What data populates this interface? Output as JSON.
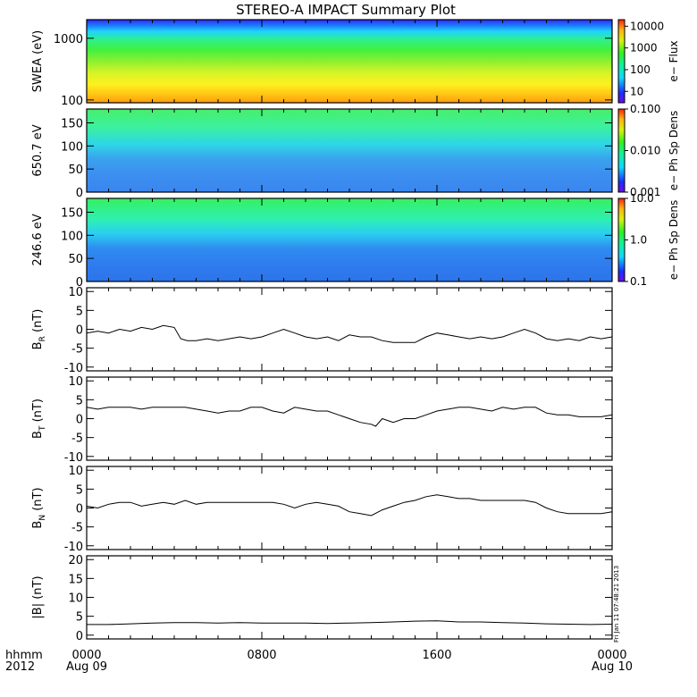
{
  "title": "STEREO-A IMPACT Summary Plot",
  "stamp": "Fri Jan 11 07:48:21 2013",
  "x_axis": {
    "corner_top": "hhmm",
    "corner_bottom": "2012",
    "ticks": [
      {
        "h": 0,
        "top": "0000",
        "bottom": "Aug 09"
      },
      {
        "h": 8,
        "top": "0800",
        "bottom": ""
      },
      {
        "h": 16,
        "top": "1600",
        "bottom": ""
      },
      {
        "h": 24,
        "top": "0000",
        "bottom": "Aug 10"
      }
    ],
    "range_hours": [
      0,
      24
    ]
  },
  "chart_data": [
    {
      "type": "heatmap",
      "ylabel": "SWEA (eV)",
      "yscale": "log",
      "ylim": [
        90,
        2000
      ],
      "yticks": [
        "100",
        "1000"
      ],
      "colorbar": {
        "label": "e− Flux",
        "ticks": [
          "10",
          "100",
          "1000",
          "10000"
        ],
        "scale": "log",
        "range": [
          3,
          20000
        ]
      }
    },
    {
      "type": "heatmap",
      "ylabel": "650.7 eV",
      "ylim": [
        0,
        180
      ],
      "yticks": [
        "0",
        "50",
        "100",
        "150"
      ],
      "colorbar": {
        "label": "e− Ph Sp Dens",
        "ticks": [
          "0.001",
          "0.010",
          "0.100"
        ],
        "scale": "log",
        "range": [
          0.001,
          0.1
        ]
      }
    },
    {
      "type": "heatmap",
      "ylabel": "246.6 eV",
      "ylim": [
        0,
        180
      ],
      "yticks": [
        "0",
        "50",
        "100",
        "150"
      ],
      "colorbar": {
        "label": "e− Ph Sp Dens",
        "ticks": [
          "0.1",
          "1.0",
          "10.0"
        ],
        "scale": "log",
        "range": [
          0.1,
          10
        ]
      }
    },
    {
      "type": "line",
      "ylabel": "B",
      "ysub": "R",
      "yunit": " (nT)",
      "ylim": [
        -11,
        11
      ],
      "yticks": [
        -10,
        -5,
        0,
        5,
        10
      ],
      "x_hours": [
        0,
        0.5,
        1,
        1.5,
        2,
        2.5,
        3,
        3.5,
        4,
        4.3,
        4.6,
        5,
        5.5,
        6,
        6.5,
        7,
        7.5,
        8,
        8.5,
        9,
        9.5,
        10,
        10.5,
        11,
        11.5,
        12,
        12.5,
        13,
        13.5,
        14,
        14.5,
        15,
        15.5,
        16,
        16.5,
        17,
        17.5,
        18,
        18.5,
        19,
        19.5,
        20,
        20.5,
        21,
        21.5,
        22,
        22.5,
        23,
        23.5,
        24
      ],
      "values": [
        -1,
        -0.5,
        -1,
        0,
        -0.5,
        0.5,
        0,
        1,
        0.5,
        -2.5,
        -3,
        -3,
        -2.5,
        -3,
        -2.5,
        -2,
        -2.5,
        -2,
        -1,
        0,
        -1,
        -2,
        -2.5,
        -2,
        -3,
        -1.5,
        -2,
        -2,
        -3,
        -3.5,
        -3.5,
        -3.5,
        -2,
        -1,
        -1.5,
        -2,
        -2.5,
        -2,
        -2.5,
        -2,
        -1,
        0,
        -1,
        -2.5,
        -3,
        -2.5,
        -3,
        -2,
        -2.5,
        -2
      ]
    },
    {
      "type": "line",
      "ylabel": "B",
      "ysub": "T",
      "yunit": " (nT)",
      "ylim": [
        -11,
        11
      ],
      "yticks": [
        -10,
        -5,
        0,
        5,
        10
      ],
      "x_hours": [
        0,
        0.5,
        1,
        1.5,
        2,
        2.5,
        3,
        3.5,
        4,
        4.5,
        5,
        5.5,
        6,
        6.5,
        7,
        7.5,
        8,
        8.5,
        9,
        9.5,
        10,
        10.5,
        11,
        11.5,
        12,
        12.5,
        13,
        13.2,
        13.5,
        14,
        14.5,
        15,
        15.5,
        16,
        16.5,
        17,
        17.5,
        18,
        18.5,
        19,
        19.5,
        20,
        20.5,
        21,
        21.5,
        22,
        22.5,
        23,
        23.5,
        24
      ],
      "values": [
        3,
        2.5,
        3,
        3,
        3,
        2.5,
        3,
        3,
        3,
        3,
        2.5,
        2,
        1.5,
        2,
        2,
        3,
        3,
        2,
        1.5,
        3,
        2.5,
        2,
        2,
        1,
        0,
        -1,
        -1.5,
        -2,
        0,
        -1,
        0,
        0,
        1,
        2,
        2.5,
        3,
        3,
        2.5,
        2,
        3,
        2.5,
        3,
        3,
        1.5,
        1,
        1,
        0.5,
        0.5,
        0.5,
        1
      ]
    },
    {
      "type": "line",
      "ylabel": "B",
      "ysub": "N",
      "yunit": " (nT)",
      "ylim": [
        -11,
        11
      ],
      "yticks": [
        -10,
        -5,
        0,
        5,
        10
      ],
      "x_hours": [
        0,
        0.5,
        1,
        1.5,
        2,
        2.5,
        3,
        3.5,
        4,
        4.5,
        5,
        5.5,
        6,
        6.5,
        7,
        7.5,
        8,
        8.5,
        9,
        9.5,
        10,
        10.5,
        11,
        11.5,
        12,
        12.5,
        13,
        13.5,
        14,
        14.5,
        15,
        15.5,
        16,
        16.5,
        17,
        17.5,
        18,
        18.5,
        19,
        19.5,
        20,
        20.5,
        21,
        21.5,
        22,
        22.5,
        23,
        23.5,
        24
      ],
      "values": [
        0.5,
        0,
        1,
        1.5,
        1.5,
        0.5,
        1,
        1.5,
        1,
        2,
        1,
        1.5,
        1.5,
        1.5,
        1.5,
        1.5,
        1.5,
        1.5,
        1,
        0,
        1,
        1.5,
        1,
        0.5,
        -1,
        -1.5,
        -2,
        -0.5,
        0.5,
        1.5,
        2,
        3,
        3.5,
        3,
        2.5,
        2.5,
        2,
        2,
        2,
        2,
        2,
        1.5,
        0,
        -1,
        -1.5,
        -1.5,
        -1.5,
        -1.5,
        -1
      ]
    },
    {
      "type": "line",
      "ylabel": "|B| (nT)",
      "ylim": [
        -1,
        21
      ],
      "yticks": [
        0,
        5,
        10,
        15,
        20
      ],
      "x_hours": [
        0,
        1,
        2,
        3,
        4,
        5,
        6,
        7,
        8,
        9,
        10,
        11,
        12,
        13,
        14,
        15,
        16,
        17,
        18,
        19,
        20,
        21,
        22,
        23,
        24
      ],
      "values": [
        2.8,
        2.8,
        3,
        3.2,
        3.3,
        3.3,
        3.2,
        3.3,
        3.2,
        3.2,
        3.2,
        3.1,
        3.2,
        3.3,
        3.5,
        3.7,
        3.8,
        3.5,
        3.5,
        3.3,
        3.2,
        3,
        2.9,
        2.8,
        2.9
      ]
    }
  ]
}
